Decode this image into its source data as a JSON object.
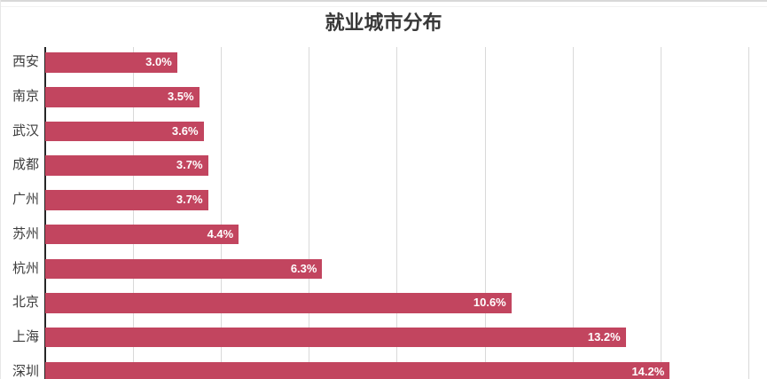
{
  "chart_data": {
    "type": "bar",
    "orientation": "horizontal",
    "title": "就业城市分布",
    "categories": [
      "西安",
      "南京",
      "武汉",
      "成都",
      "广州",
      "苏州",
      "杭州",
      "北京",
      "上海",
      "深圳"
    ],
    "values": [
      3.0,
      3.5,
      3.6,
      3.7,
      3.7,
      4.4,
      6.3,
      10.6,
      13.2,
      14.2
    ],
    "value_labels": [
      "3.0%",
      "3.5%",
      "3.6%",
      "3.7%",
      "3.7%",
      "4.4%",
      "6.3%",
      "10.6%",
      "13.2%",
      "14.2%"
    ],
    "xlim": [
      0,
      16
    ],
    "gridline_step_percent": 2,
    "grid": true,
    "legend": false,
    "bar_color": "#C2455F",
    "gridline_color": "#d9d9d9",
    "axis_color": "#262626",
    "title_color": "#383838",
    "label_color": "#3d3d3d",
    "value_label_color": "#ffffff"
  }
}
